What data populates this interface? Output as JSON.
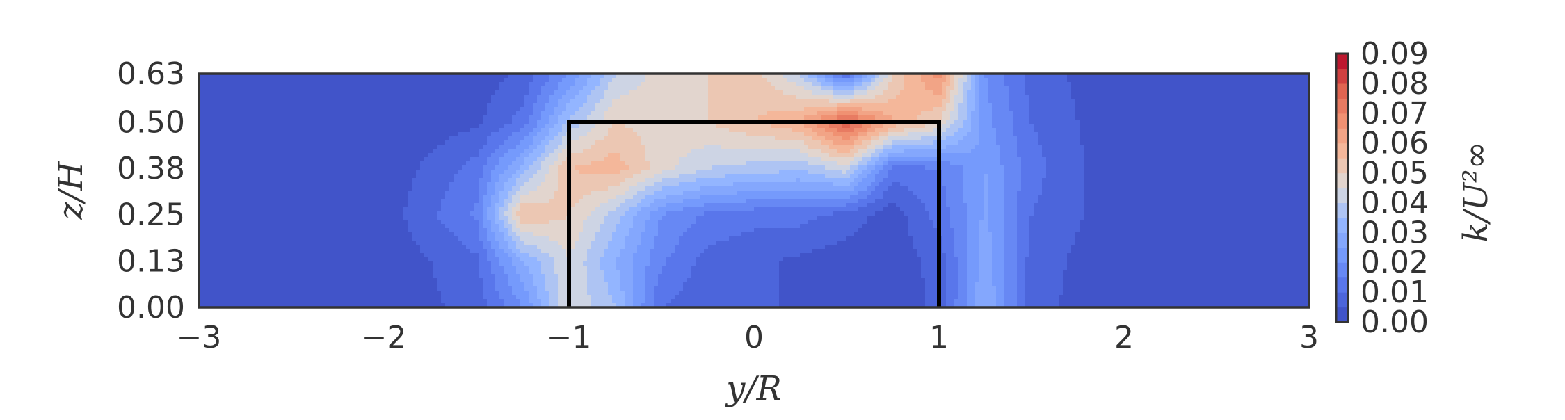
{
  "chart_data": {
    "type": "heatmap",
    "subtype": "filled-contour",
    "title": "",
    "xlabel": "y/R",
    "ylabel": "z/H",
    "colorbar_label": "k/U²∞",
    "colormap": "coolwarm",
    "xlim": [
      -3,
      3
    ],
    "ylim": [
      0,
      0.63
    ],
    "x_ticks": [
      -3,
      -2,
      -1,
      0,
      1,
      2,
      3
    ],
    "x_tick_labels": [
      "−3",
      "−2",
      "−1",
      "0",
      "1",
      "2",
      "3"
    ],
    "y_ticks": [
      0.0,
      0.125,
      0.25,
      0.375,
      0.5,
      0.63
    ],
    "y_tick_labels": [
      "0.00",
      "0.13",
      "0.25",
      "0.38",
      "0.50",
      "0.63"
    ],
    "colorbar_range": [
      0.0,
      0.09
    ],
    "colorbar_ticks": [
      0.0,
      0.01,
      0.02,
      0.03,
      0.04,
      0.05,
      0.06,
      0.07,
      0.08,
      0.09
    ],
    "colorbar_tick_labels": [
      "0.00",
      "0.01",
      "0.02",
      "0.03",
      "0.04",
      "0.05",
      "0.06",
      "0.07",
      "0.08",
      "0.09"
    ],
    "outline": {
      "description": "turbine projection",
      "points": [
        [
          -1,
          0
        ],
        [
          -1,
          0.5
        ],
        [
          1,
          0.5
        ],
        [
          1,
          0
        ]
      ]
    },
    "grid": false,
    "field_samples": {
      "y": [
        -3,
        -2.5,
        -2,
        -1.5,
        -1.25,
        -1,
        -0.75,
        -0.5,
        -0.25,
        0,
        0.25,
        0.5,
        0.75,
        1,
        1.25,
        1.5,
        2,
        2.5,
        3
      ],
      "z": [
        0.0,
        0.125,
        0.25,
        0.375,
        0.5,
        0.63
      ],
      "k": [
        [
          0.0,
          0.0,
          0.001,
          0.007,
          0.02,
          0.045,
          0.035,
          0.01,
          0.006,
          0.005,
          0.005,
          0.004,
          0.002,
          0.006,
          0.03,
          0.007,
          0.0,
          0.0,
          0.0
        ],
        [
          0.0,
          0.0,
          0.001,
          0.009,
          0.03,
          0.045,
          0.03,
          0.016,
          0.008,
          0.006,
          0.004,
          0.002,
          0.002,
          0.007,
          0.028,
          0.008,
          0.0,
          0.0,
          0.0
        ],
        [
          0.0,
          0.0,
          0.002,
          0.016,
          0.055,
          0.05,
          0.038,
          0.02,
          0.014,
          0.012,
          0.012,
          0.008,
          0.002,
          0.012,
          0.026,
          0.01,
          0.001,
          0.002,
          0.0
        ],
        [
          0.0,
          0.0,
          0.001,
          0.012,
          0.032,
          0.055,
          0.058,
          0.047,
          0.04,
          0.038,
          0.036,
          0.043,
          0.013,
          0.015,
          0.025,
          0.012,
          0.0,
          0.0,
          0.0
        ],
        [
          0.0,
          0.001,
          0.0,
          0.004,
          0.012,
          0.036,
          0.05,
          0.048,
          0.05,
          0.055,
          0.06,
          0.08,
          0.06,
          0.05,
          0.022,
          0.01,
          0.0,
          0.0,
          0.0
        ],
        [
          0.0,
          0.0,
          0.0,
          0.002,
          0.006,
          0.02,
          0.04,
          0.047,
          0.05,
          0.052,
          0.04,
          0.01,
          0.05,
          0.068,
          0.02,
          0.008,
          0.0,
          0.0,
          0.0
        ]
      ]
    }
  }
}
